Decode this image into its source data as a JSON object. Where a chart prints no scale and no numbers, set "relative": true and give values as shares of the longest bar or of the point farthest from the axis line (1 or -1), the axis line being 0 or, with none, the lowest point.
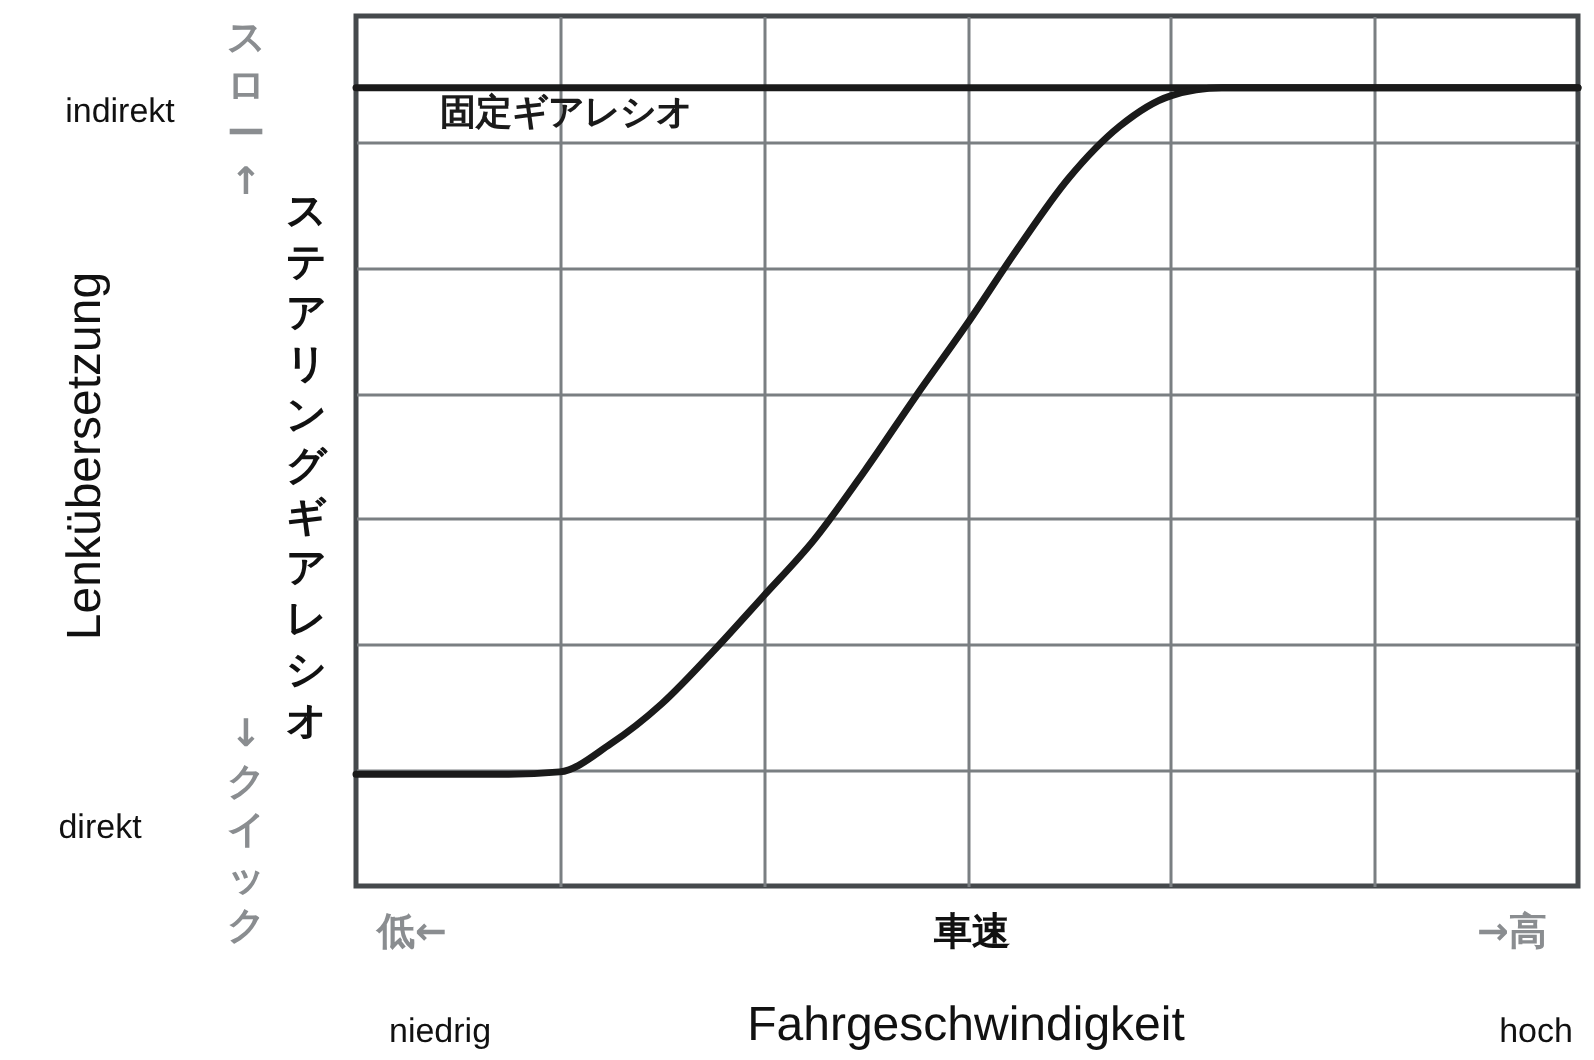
{
  "chart_data": {
    "type": "line",
    "relative": true,
    "xlabel": "Fahrgeschwindigkeit",
    "grid": true,
    "categories": [
      null,
      null,
      null,
      null,
      null,
      null,
      null,
      null,
      null,
      null,
      null,
      null,
      null,
      null,
      null,
      null,
      null,
      null,
      null,
      null,
      null,
      null,
      null,
      null,
      null
    ],
    "series": [
      {
        "name": "固定ギアレシオ",
        "color": "#1a1a1a",
        "values": [
          1,
          1,
          1,
          1,
          1,
          1,
          1,
          1,
          1,
          1,
          1,
          1,
          1,
          1,
          1,
          1,
          1,
          1,
          1,
          1,
          1,
          1,
          1,
          1,
          1
        ]
      },
      {
        "color": "#1a1a1a",
        "values": [
          0.14,
          0.14,
          0.14,
          0.14,
          0.143,
          0.178,
          0.228,
          0.293,
          0.363,
          0.434,
          0.521,
          0.614,
          0.704,
          0.799,
          0.887,
          0.952,
          0.99,
          1,
          1,
          1,
          1,
          1,
          1,
          1,
          1
        ]
      }
    ],
    "annotations": [
      "Lenkübersetzung",
      "ステアリングギアレシオ",
      "スロー↑",
      "↓クイック",
      "indirekt",
      "direkt",
      "車速",
      "低←",
      "→高",
      "niedrig",
      "hoch"
    ]
  }
}
